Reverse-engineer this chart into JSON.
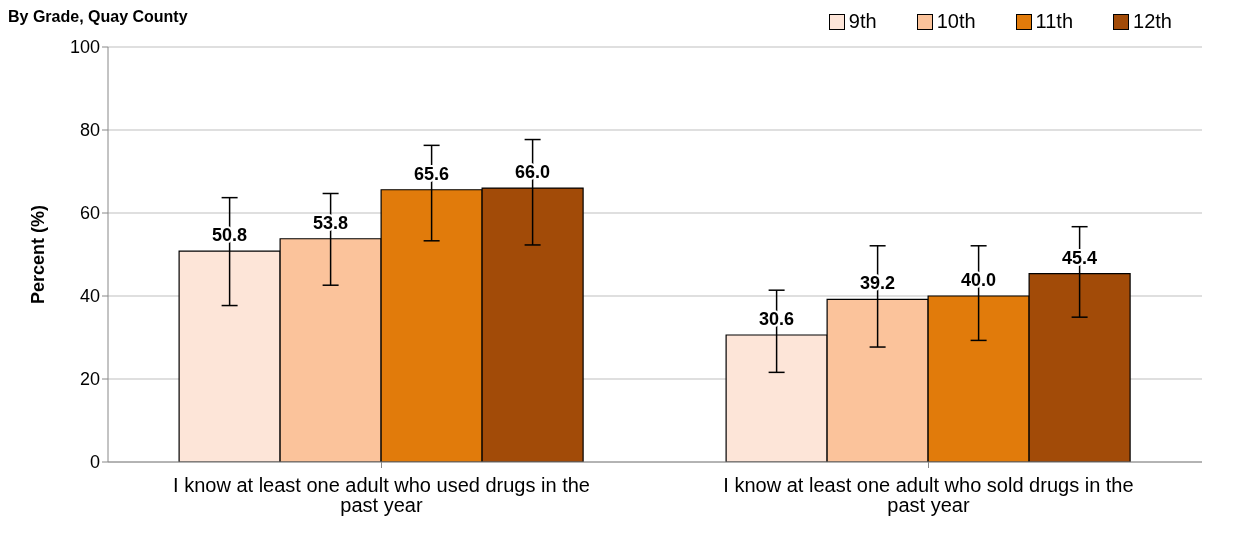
{
  "chart_data": {
    "type": "bar",
    "title": "By Grade, Quay County",
    "ylabel": "Percent (%)",
    "categories": [
      "I know at least one adult who used drugs in the past year",
      "I know at least one adult who sold drugs in the past year"
    ],
    "series": [
      {
        "name": "9th",
        "color": "#fde5d8",
        "values": [
          50.8,
          30.6
        ],
        "value_labels": [
          "50.8",
          "30.6"
        ],
        "errors": [
          [
            37.7,
            63.7
          ],
          [
            21.6,
            41.4
          ]
        ]
      },
      {
        "name": "10th",
        "color": "#fbc39b",
        "values": [
          53.8,
          39.2
        ],
        "value_labels": [
          "53.8",
          "39.2"
        ],
        "errors": [
          [
            42.6,
            64.7
          ],
          [
            27.7,
            52.1
          ]
        ]
      },
      {
        "name": "11th",
        "color": "#e17b0b",
        "values": [
          65.6,
          40.0
        ],
        "value_labels": [
          "65.6",
          "40.0"
        ],
        "errors": [
          [
            53.3,
            76.3
          ],
          [
            29.3,
            52.1
          ]
        ]
      },
      {
        "name": "12th",
        "color": "#a24b08",
        "values": [
          66.0,
          45.4
        ],
        "value_labels": [
          "66.0",
          "45.4"
        ],
        "errors": [
          [
            52.3,
            77.7
          ],
          [
            34.9,
            56.7
          ]
        ]
      }
    ],
    "ylim": [
      0,
      100
    ],
    "yticks": [
      0,
      20,
      40,
      60,
      80,
      100
    ],
    "grid": "y",
    "legend": "top right"
  }
}
